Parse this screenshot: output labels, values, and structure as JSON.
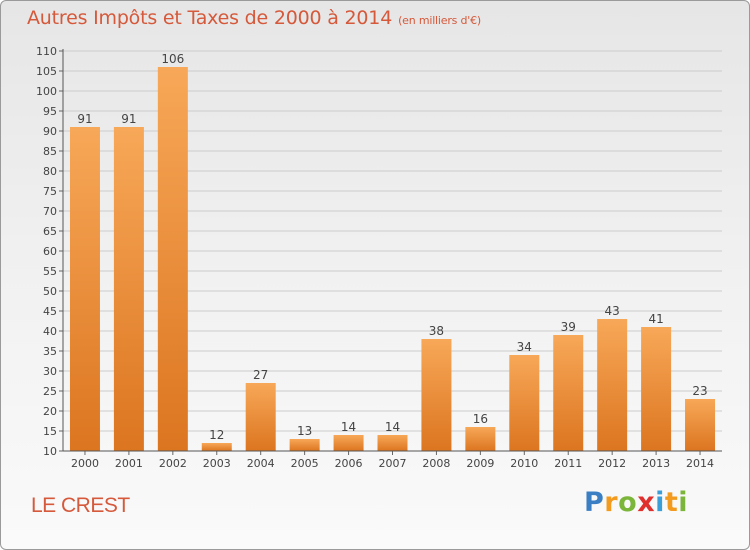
{
  "title": {
    "main": "Autres Impôts et Taxes de 2000 à 2014",
    "unit": "(en milliers d'€)"
  },
  "commune": "LE CREST",
  "logo": {
    "letters": [
      "P",
      "r",
      "o",
      "x",
      "i",
      "t",
      "i"
    ],
    "colors": [
      "#3a7fc4",
      "#f29b1f",
      "#7bb53a",
      "#e0302e",
      "#3a9fd8",
      "#f29b1f",
      "#7bb53a"
    ]
  },
  "colors": {
    "bar_light": "#f7a858",
    "bar_dark": "#dc7520",
    "title": "#d5593a",
    "grid": "#cccccc"
  },
  "chart_data": {
    "type": "bar",
    "categories": [
      "2000",
      "2001",
      "2002",
      "2003",
      "2004",
      "2005",
      "2006",
      "2007",
      "2008",
      "2009",
      "2010",
      "2011",
      "2012",
      "2013",
      "2014"
    ],
    "values": [
      91,
      91,
      106,
      12,
      27,
      13,
      14,
      14,
      38,
      16,
      34,
      39,
      43,
      41,
      23
    ],
    "ylim": [
      10,
      110
    ],
    "ytick_step": 5,
    "grid": true,
    "title": "Autres Impôts et Taxes de 2000 à 2014",
    "xlabel": "",
    "ylabel": ""
  }
}
